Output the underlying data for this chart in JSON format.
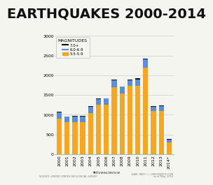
{
  "title": "EARTHQUAKES 2000-2014",
  "years": [
    "2000",
    "2001",
    "2002",
    "2003",
    "2004",
    "2005",
    "2006",
    "2007",
    "2008",
    "2009",
    "2010",
    "2011",
    "2012",
    "2013",
    "2014*"
  ],
  "mag_7plus": [
    14,
    15,
    13,
    14,
    14,
    11,
    11,
    18,
    12,
    16,
    23,
    19,
    14,
    17,
    11
  ],
  "mag_6to69": [
    158,
    126,
    130,
    140,
    157,
    140,
    149,
    178,
    168,
    144,
    166,
    205,
    108,
    123,
    73
  ],
  "mag_55to59": [
    900,
    820,
    820,
    820,
    1050,
    1260,
    1260,
    1700,
    1540,
    1730,
    1730,
    2200,
    1100,
    1100,
    300
  ],
  "colors_7plus": "#111111",
  "colors_6to69": "#5b8dd9",
  "colors_55to59": "#f5a623",
  "legend_labels": [
    "7.0+",
    "6.0-6.9",
    "5.5-5.9"
  ],
  "ylim": [
    0,
    3000
  ],
  "yticks": [
    0,
    500,
    1000,
    1500,
    2000,
    2500,
    3000
  ],
  "ytick_labels": [
    "0",
    "500",
    "1000",
    "1500",
    "2000",
    "2500",
    "3000"
  ],
  "source_left": "SOURCE: UNITED STATES GEOLOGICAL SURVEY",
  "source_right": "KARL TATE / © LIVESCIENCE.COM",
  "source_mid": "as of May, 2014",
  "bg_color": "#f5f5f0",
  "plot_bg": "#f5f5f0",
  "grid_color": "#cccccc",
  "title_fontsize": 14,
  "tick_fontsize": 4.5,
  "legend_fontsize": 4.0,
  "legend_title_fontsize": 4.5
}
